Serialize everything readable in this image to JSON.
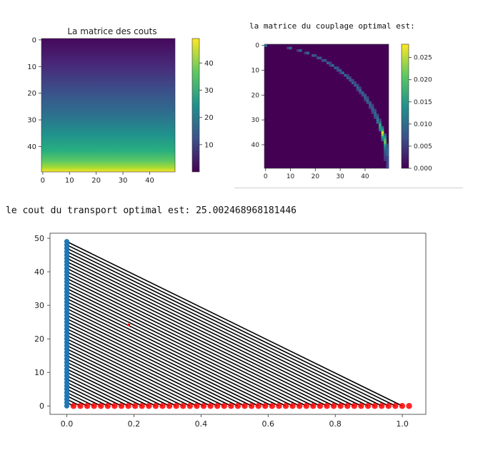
{
  "chart_data": [
    {
      "type": "heatmap",
      "title": "La matrice des couts",
      "rows": 50,
      "cols": 50,
      "xticks": [
        0,
        10,
        20,
        30,
        40
      ],
      "yticks": [
        0,
        10,
        20,
        30,
        40
      ],
      "colormap": "viridis",
      "value_range": [
        0,
        49
      ],
      "colorbar_ticks": [
        10,
        20,
        30,
        40
      ]
    },
    {
      "type": "heatmap",
      "title": "la matrice du couplage optimal est:",
      "rows": 50,
      "cols": 50,
      "xticks": [
        0,
        10,
        20,
        30,
        40
      ],
      "yticks": [
        0,
        10,
        20,
        30,
        40
      ],
      "colormap": "viridis",
      "value_range": [
        0,
        0.028
      ],
      "colorbar_ticks": [
        "0.000",
        "0.005",
        "0.010",
        "0.015",
        "0.020",
        "0.025"
      ]
    },
    {
      "type": "scatter",
      "xticks": [
        "0.0",
        "0.2",
        "0.4",
        "0.6",
        "0.8",
        "1.0"
      ],
      "yticks": [
        0,
        10,
        20,
        30,
        40,
        50
      ],
      "xlim": [
        -0.05,
        1.07
      ],
      "ylim": [
        -2.5,
        51.5
      ],
      "series": [
        {
          "color": "#1f77b4",
          "x_const": 0,
          "y_range": [
            0,
            49
          ],
          "count": 50
        },
        {
          "color": "#ff0000",
          "y_const": 0,
          "x_range": [
            0.0,
            1.0
          ],
          "count": 50
        }
      ],
      "line_color": "#000000",
      "outlier_point": {
        "x": 0.185,
        "y": 24.2,
        "color": "#ff0000"
      }
    }
  ],
  "output": {
    "cost_text": "le cout du transport optimal est: 25.002468968181446"
  },
  "colors": {
    "viridis_low": "#440154",
    "viridis_high": "#fde725"
  }
}
